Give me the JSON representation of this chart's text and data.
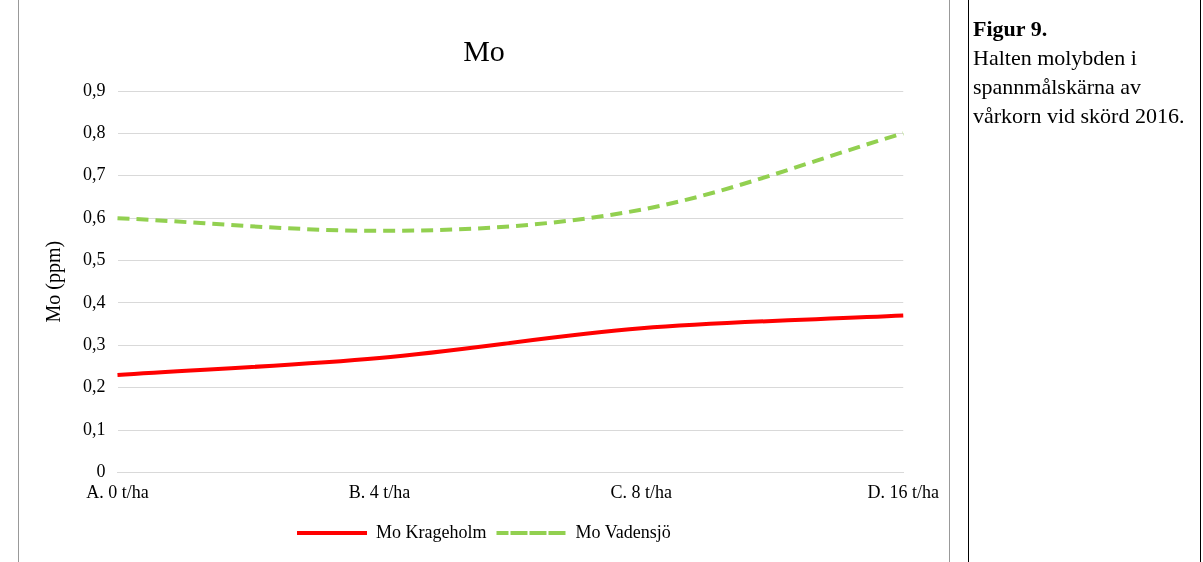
{
  "chart_data": {
    "type": "line",
    "title": "Mo",
    "ylabel": "Mo (ppm)",
    "categories": [
      "A. 0 t/ha",
      "B. 4 t/ha",
      "C. 8 t/ha",
      "D. 16 t/ha"
    ],
    "series": [
      {
        "name": "Mo Krageholm",
        "color": "#ff0000",
        "values": [
          0.23,
          0.27,
          0.34,
          0.37
        ],
        "line_style": "solid"
      },
      {
        "name": "Mo Vadensjö",
        "color": "#92d050",
        "values": [
          0.6,
          0.57,
          0.62,
          0.8
        ],
        "line_style": "dashed"
      }
    ],
    "ylim": [
      0,
      0.9
    ],
    "yticks": [
      0,
      {
        "value": 0.1,
        "label": "0,1"
      },
      {
        "value": 0.2,
        "label": "0,2"
      },
      {
        "value": 0.3,
        "label": "0,3"
      },
      {
        "value": 0.4,
        "label": "0,4"
      },
      {
        "value": 0.5,
        "label": "0,5"
      },
      {
        "value": 0.6,
        "label": "0,6"
      },
      {
        "value": 0.7,
        "label": "0,7"
      },
      {
        "value": 0.8,
        "label": "0,8"
      },
      {
        "value": 0.9,
        "label": "0,9"
      }
    ],
    "grid": "y",
    "legend": "bottom",
    "marker": "none",
    "annotations": [
      "Figur 9.",
      "Halten molybden i spannmålskärna av vårkorn vid skörd 2016."
    ]
  }
}
